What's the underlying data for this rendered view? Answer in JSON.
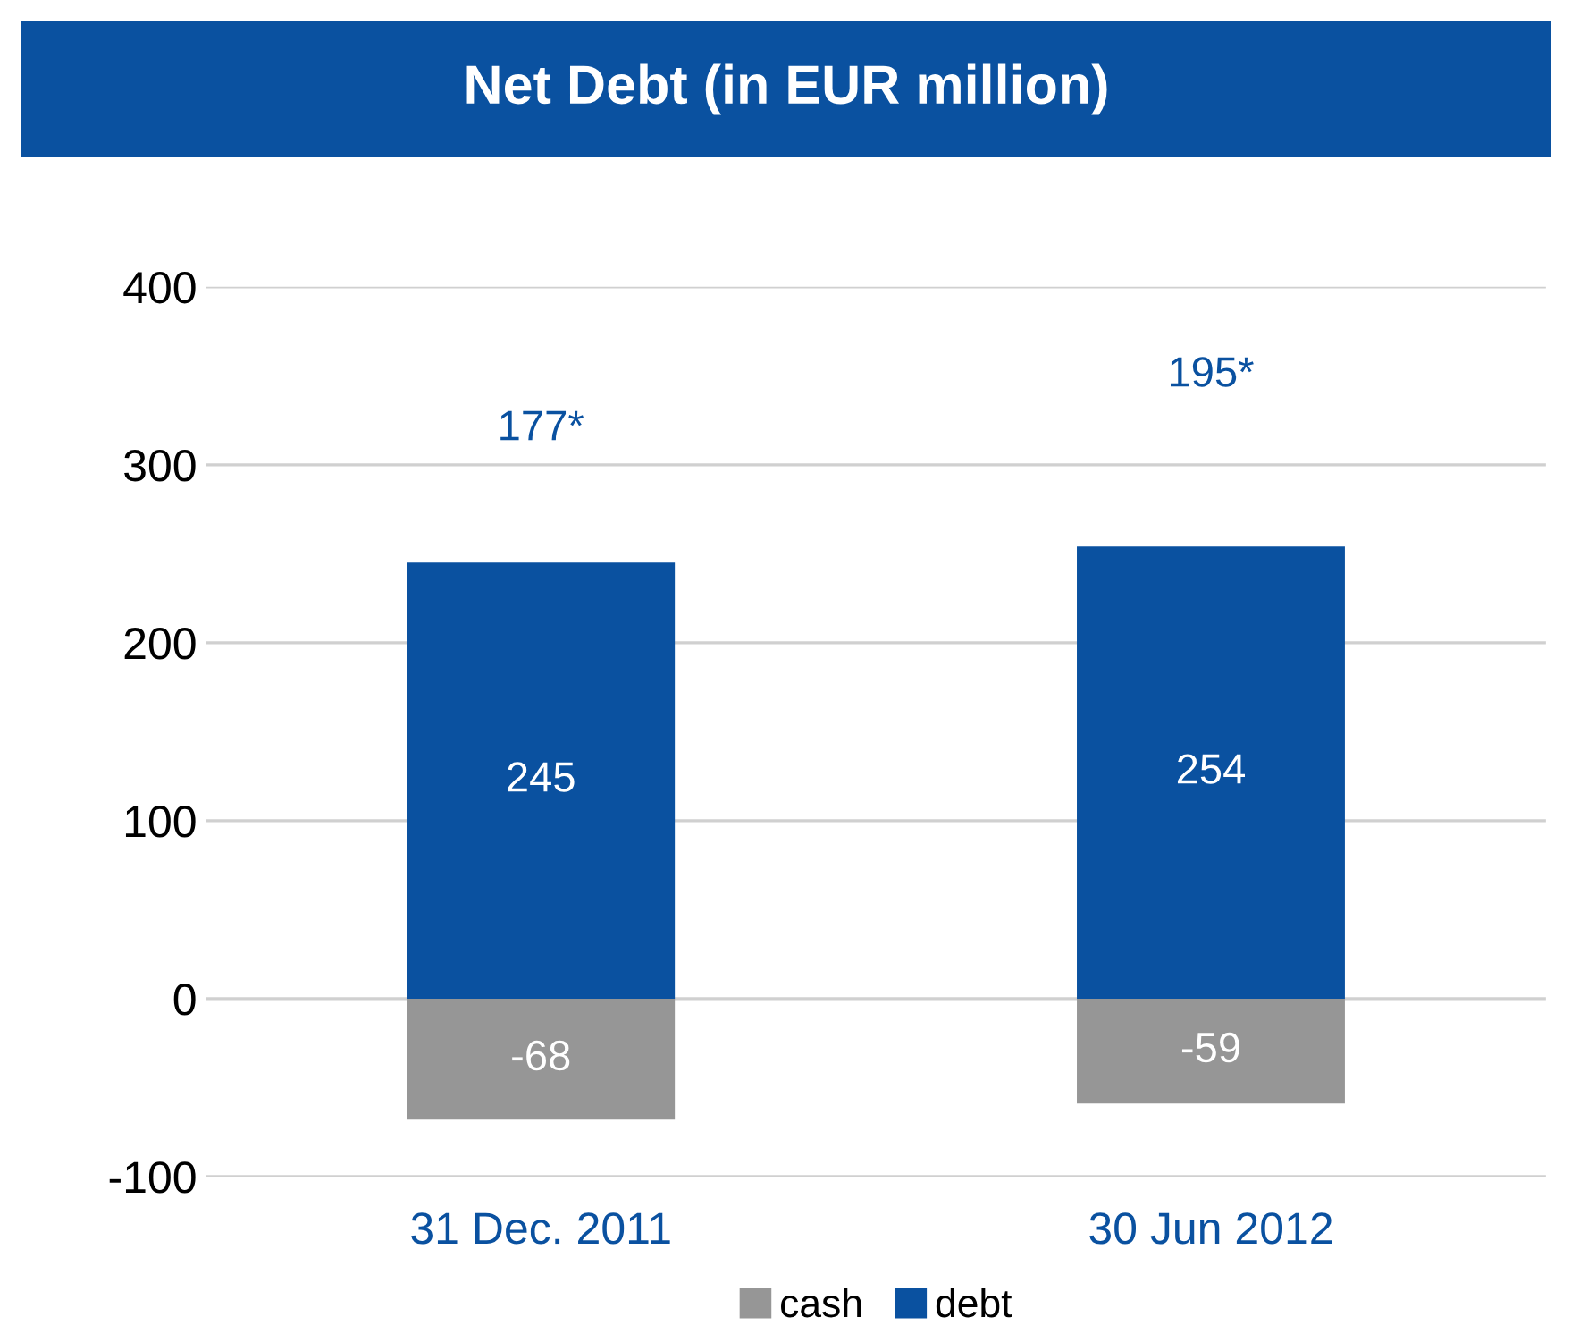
{
  "chart_data": {
    "type": "bar",
    "title": "Net Debt (in EUR million)",
    "categories": [
      "31 Dec. 2011",
      "30 Jun 2012"
    ],
    "series": [
      {
        "name": "cash",
        "color": "#969696",
        "values": [
          -68,
          -59
        ]
      },
      {
        "name": "debt",
        "color": "#0a51a0",
        "values": [
          245,
          254
        ]
      }
    ],
    "stacked": true,
    "data_labels": true,
    "annotations": [
      "177*",
      "195*"
    ],
    "ylim": [
      -100,
      400
    ],
    "yticks": [
      -100,
      0,
      100,
      200,
      300,
      400
    ],
    "grid": "y",
    "legend": "bottom"
  }
}
